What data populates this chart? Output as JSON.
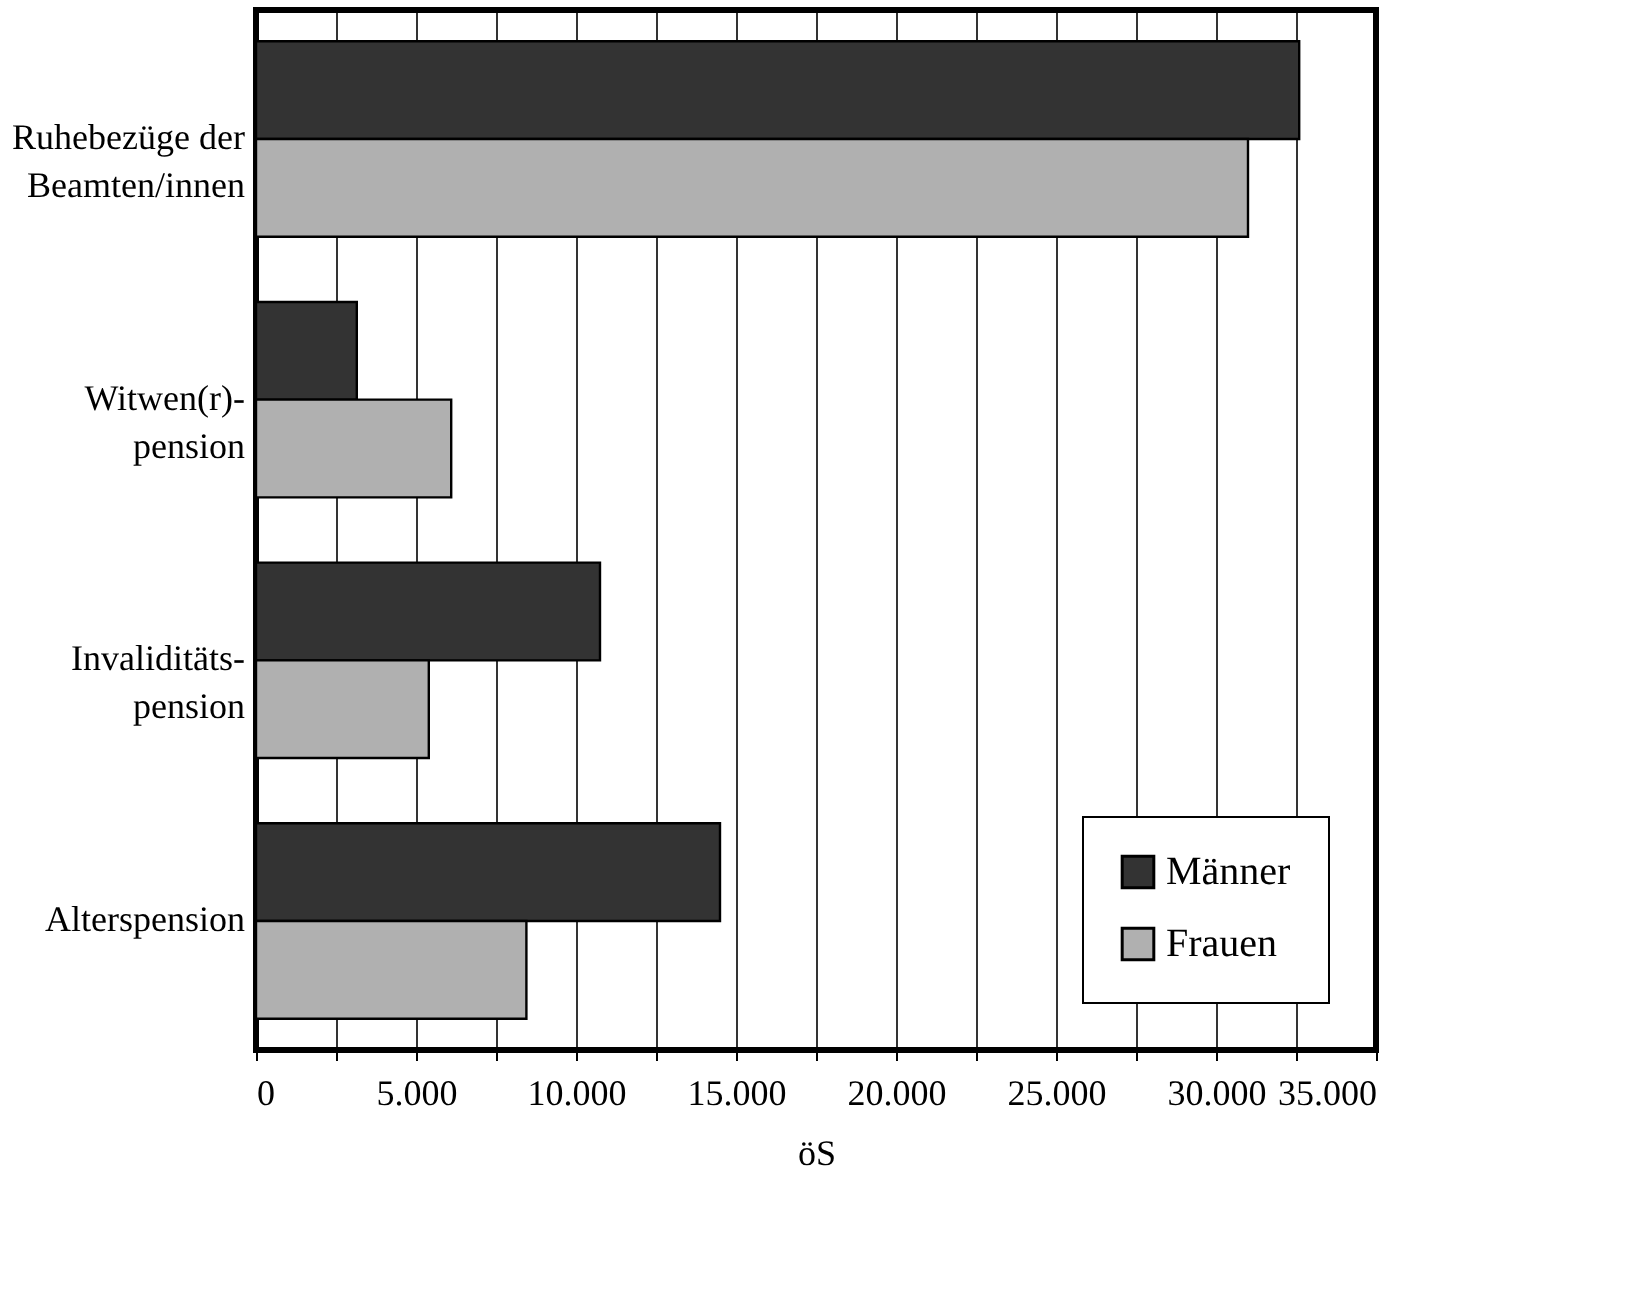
{
  "chart_data": {
    "type": "bar",
    "orientation": "horizontal",
    "xlabel": "öS",
    "categories": [
      "Ruhebezüge der Beamten/innen",
      "Witwen(r)-pension",
      "Invaliditäts-pension",
      "Alterspension"
    ],
    "series": [
      {
        "name": "Männer",
        "color": "#333333",
        "values": [
          32600,
          3150,
          10750,
          14500
        ]
      },
      {
        "name": "Frauen",
        "color": "#b0b0b0",
        "values": [
          31000,
          6100,
          5400,
          8450
        ]
      }
    ],
    "xlim": [
      0,
      35000
    ],
    "xticks": [
      0,
      {
        "value": 2500,
        "label": null
      },
      {
        "value": 5000,
        "label": "5.000"
      },
      {
        "value": 7500,
        "label": null
      },
      {
        "value": 10000,
        "label": "10.000"
      },
      {
        "value": 12500,
        "label": null
      },
      {
        "value": 15000,
        "label": "15.000"
      },
      {
        "value": 17500,
        "label": null
      },
      {
        "value": 20000,
        "label": "20.000"
      },
      {
        "value": 22500,
        "label": null
      },
      {
        "value": 25000,
        "label": "25.000"
      },
      {
        "value": 27500,
        "label": null
      },
      {
        "value": 30000,
        "label": "30.000"
      },
      {
        "value": 32500,
        "label": null
      },
      {
        "value": 35000,
        "label": "35.000"
      }
    ],
    "grid": "x",
    "legend": "bottom right"
  }
}
